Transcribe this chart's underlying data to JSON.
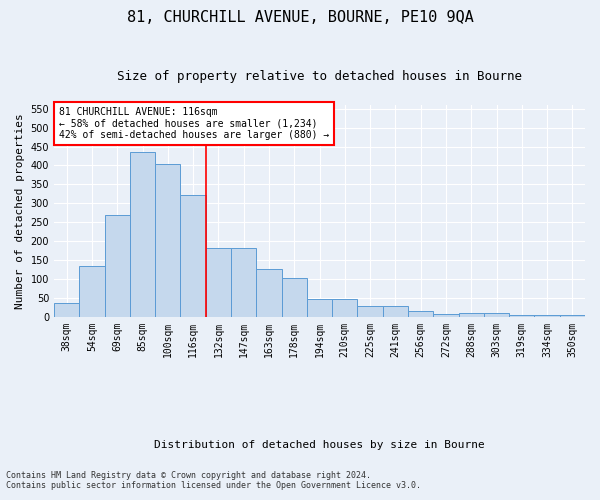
{
  "title_line1": "81, CHURCHILL AVENUE, BOURNE, PE10 9QA",
  "title_line2": "Size of property relative to detached houses in Bourne",
  "xlabel": "Distribution of detached houses by size in Bourne",
  "ylabel": "Number of detached properties",
  "categories": [
    "38sqm",
    "54sqm",
    "69sqm",
    "85sqm",
    "100sqm",
    "116sqm",
    "132sqm",
    "147sqm",
    "163sqm",
    "178sqm",
    "194sqm",
    "210sqm",
    "225sqm",
    "241sqm",
    "256sqm",
    "272sqm",
    "288sqm",
    "303sqm",
    "319sqm",
    "334sqm",
    "350sqm"
  ],
  "values": [
    35,
    133,
    270,
    435,
    405,
    322,
    181,
    181,
    125,
    103,
    46,
    46,
    28,
    28,
    14,
    8,
    10,
    10,
    4,
    4,
    5
  ],
  "bar_color": "#c5d8ed",
  "bar_edge_color": "#5b9bd5",
  "property_line_x": 5.5,
  "annotation_text": "81 CHURCHILL AVENUE: 116sqm\n← 58% of detached houses are smaller (1,234)\n42% of semi-detached houses are larger (880) →",
  "annotation_box_color": "white",
  "annotation_box_edge_color": "red",
  "line_color": "red",
  "footer_line1": "Contains HM Land Registry data © Crown copyright and database right 2024.",
  "footer_line2": "Contains public sector information licensed under the Open Government Licence v3.0.",
  "ylim": [
    0,
    560
  ],
  "yticks": [
    0,
    50,
    100,
    150,
    200,
    250,
    300,
    350,
    400,
    450,
    500,
    550
  ],
  "bg_color": "#eaf0f8",
  "plot_bg_color": "#eaf0f8",
  "grid_color": "white",
  "title1_fontsize": 11,
  "title2_fontsize": 9,
  "xlabel_fontsize": 8,
  "ylabel_fontsize": 8,
  "tick_fontsize": 7,
  "annot_fontsize": 7,
  "footer_fontsize": 6
}
